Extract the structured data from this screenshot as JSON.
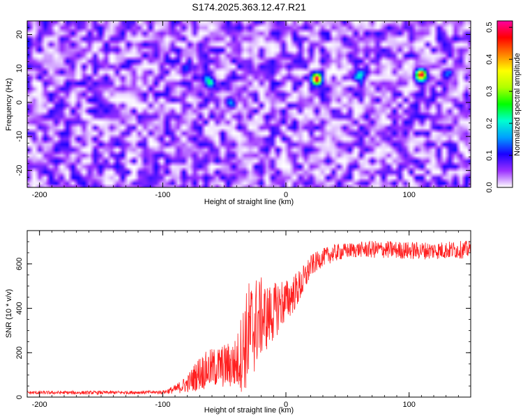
{
  "title": "S174.2025.363.12.47.R21",
  "chart_data": [
    {
      "type": "heatmap",
      "xlabel": "Height of straight line (km)",
      "ylabel": "Frequency (Hz)",
      "xlim": [
        -210,
        150
      ],
      "ylim": [
        -25,
        24
      ],
      "xticks": [
        -200,
        -100,
        0,
        100
      ],
      "yticks": [
        -20,
        -10,
        0,
        10,
        20
      ],
      "colorbar": {
        "label": "Normalized spectral amplitude",
        "range": [
          0.0,
          0.52
        ],
        "ticks": [
          0.0,
          0.1,
          0.2,
          0.3,
          0.4,
          0.5
        ],
        "colors": [
          "#ffffff",
          "#9b30ff",
          "#1a00ff",
          "#00a0ff",
          "#00ffd0",
          "#00ff00",
          "#b0ff00",
          "#ffff00",
          "#ff8000",
          "#ff0000",
          "#ff00a0"
        ]
      },
      "background_level": 0.05,
      "features": [
        {
          "x": 25,
          "y": 7,
          "amplitude": 0.5
        },
        {
          "x": 110,
          "y": 8,
          "amplitude": 0.45
        },
        {
          "x": -62,
          "y": 6,
          "amplitude": 0.2
        },
        {
          "x": -45,
          "y": 0,
          "amplitude": 0.15
        },
        {
          "x": 60,
          "y": 8,
          "amplitude": 0.15
        },
        {
          "x": 130,
          "y": 8,
          "amplitude": 0.12
        },
        {
          "x": -80,
          "y": 10,
          "amplitude": 0.1
        }
      ]
    },
    {
      "type": "line",
      "xlabel": "Height of straight line (km)",
      "ylabel": "SNR (10 * v/v)",
      "xlim": [
        -210,
        150
      ],
      "ylim": [
        0,
        750
      ],
      "xticks": [
        -200,
        -100,
        0,
        100
      ],
      "yticks": [
        0,
        200,
        400,
        600
      ],
      "series": [
        {
          "color": "#ff2020",
          "x": [
            -210,
            -150,
            -100,
            -90,
            -80,
            -70,
            -60,
            -50,
            -40,
            -35,
            -30,
            -25,
            -20,
            -15,
            -10,
            -5,
            0,
            5,
            10,
            15,
            20,
            30,
            40,
            50,
            60,
            70,
            80,
            100,
            120,
            150
          ],
          "mean": [
            20,
            20,
            22,
            35,
            60,
            110,
            130,
            140,
            150,
            220,
            280,
            330,
            360,
            360,
            380,
            420,
            430,
            460,
            490,
            530,
            590,
            630,
            650,
            660,
            665,
            665,
            665,
            660,
            660,
            665
          ],
          "noise": [
            8,
            8,
            8,
            20,
            40,
            80,
            90,
            100,
            120,
            200,
            250,
            220,
            180,
            150,
            130,
            120,
            100,
            90,
            80,
            70,
            50,
            40,
            40,
            35,
            35,
            40,
            40,
            40,
            40,
            40
          ]
        }
      ]
    }
  ]
}
